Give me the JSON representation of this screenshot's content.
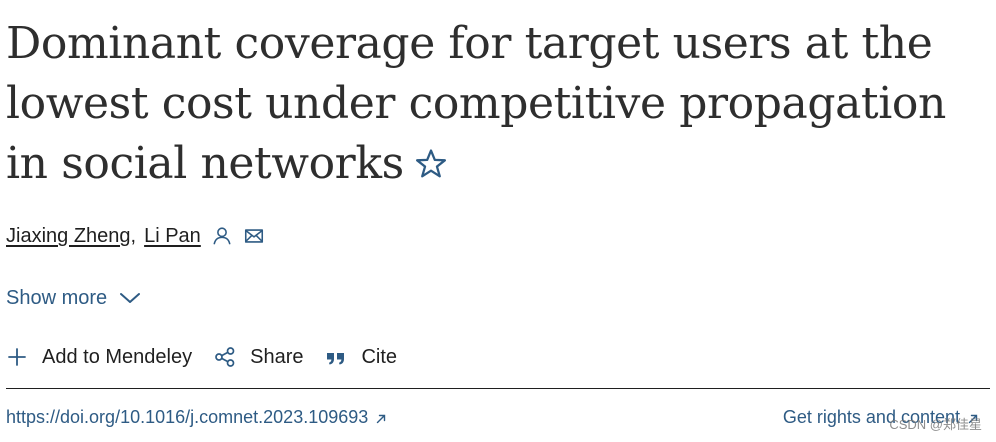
{
  "article": {
    "title": "Dominant coverage for target users at the lowest cost under competitive propagation in social networks",
    "authors": [
      {
        "name": "Jiaxing Zheng"
      },
      {
        "name": "Li Pan"
      }
    ],
    "author_separator": ",",
    "show_more_label": "Show more",
    "doi": "https://doi.org/10.1016/j.comnet.2023.109693",
    "rights_label": "Get rights and content"
  },
  "actions": {
    "add_label": "Add to Mendeley",
    "share_label": "Share",
    "cite_label": "Cite"
  },
  "watermark": "CSDN @郑佳星",
  "colors": {
    "link": "#2e5b84",
    "text": "#1f1f1f",
    "title": "#2e2e2e"
  },
  "icons": {
    "bookmark": "star-outline-icon",
    "author": "person-icon",
    "email": "envelope-icon",
    "expand": "chevron-down-icon",
    "add": "plus-icon",
    "share": "share-icon",
    "cite": "quote-icon",
    "external": "external-arrow-icon"
  }
}
